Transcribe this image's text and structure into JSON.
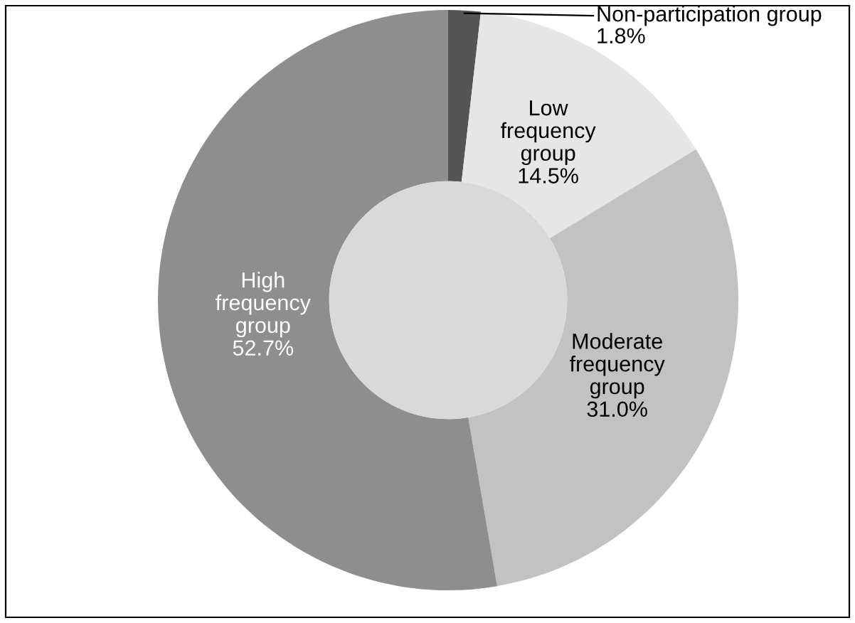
{
  "chart_data": {
    "type": "donut",
    "categories": [
      "Non-participation group",
      "Low frequency group",
      "Moderate frequency group",
      "High frequency group"
    ],
    "values": [
      1.8,
      14.5,
      31.0,
      52.7
    ],
    "colors": [
      "#555555",
      "#e6e6e6",
      "#c2c2c2",
      "#8e8e8e"
    ],
    "value_labels": [
      "1.8%",
      "14.5%",
      "31.0%",
      "52.7%"
    ],
    "legend": false
  }
}
